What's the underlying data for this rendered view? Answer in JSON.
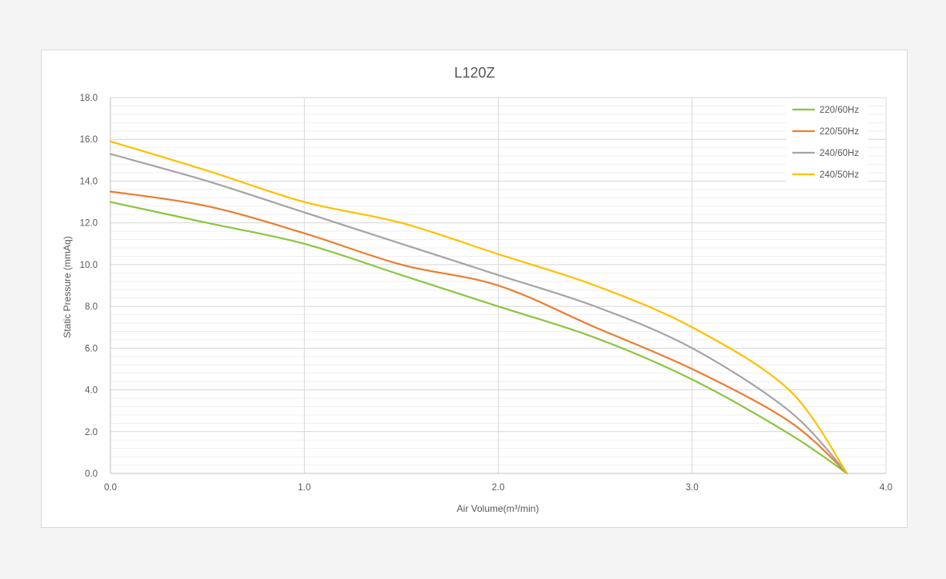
{
  "chart_data": {
    "type": "line",
    "title": "L120Z",
    "xlabel": "Air Volume(m³/min)",
    "ylabel": "Static Pressure (mmAq)",
    "xlim": [
      0,
      4
    ],
    "ylim": [
      0,
      18
    ],
    "x_ticks": [
      "0.0",
      "1.0",
      "2.0",
      "3.0",
      "4.0"
    ],
    "y_ticks": [
      "0.0",
      "2.0",
      "4.0",
      "6.0",
      "8.0",
      "10.0",
      "12.0",
      "14.0",
      "16.0",
      "18.0"
    ],
    "grid": true,
    "legend_position": "top-right",
    "series": [
      {
        "name": "220/60Hz",
        "color": "#8dc63f",
        "points": [
          [
            0,
            13.0
          ],
          [
            0.5,
            12.0
          ],
          [
            1.0,
            11.0
          ],
          [
            1.5,
            9.5
          ],
          [
            2.0,
            8.0
          ],
          [
            2.5,
            6.5
          ],
          [
            3.0,
            4.5
          ],
          [
            3.5,
            1.9
          ],
          [
            3.8,
            0
          ]
        ]
      },
      {
        "name": "220/50Hz",
        "color": "#ed7d31",
        "points": [
          [
            0,
            13.5
          ],
          [
            0.5,
            12.8
          ],
          [
            1.0,
            11.5
          ],
          [
            1.5,
            10.0
          ],
          [
            2.0,
            9.0
          ],
          [
            2.5,
            7.0
          ],
          [
            3.0,
            5.0
          ],
          [
            3.5,
            2.5
          ],
          [
            3.8,
            0
          ]
        ]
      },
      {
        "name": "240/60Hz",
        "color": "#a5a5a5",
        "points": [
          [
            0,
            15.3
          ],
          [
            0.5,
            14.0
          ],
          [
            1.0,
            12.5
          ],
          [
            1.5,
            11.0
          ],
          [
            2.0,
            9.5
          ],
          [
            2.5,
            8.0
          ],
          [
            3.0,
            6.0
          ],
          [
            3.5,
            3.0
          ],
          [
            3.8,
            0
          ]
        ]
      },
      {
        "name": "240/50Hz",
        "color": "#ffc000",
        "points": [
          [
            0,
            15.9
          ],
          [
            0.5,
            14.5
          ],
          [
            1.0,
            13.0
          ],
          [
            1.5,
            12.0
          ],
          [
            2.0,
            10.5
          ],
          [
            2.5,
            9.0
          ],
          [
            3.0,
            7.0
          ],
          [
            3.5,
            4.0
          ],
          [
            3.8,
            0
          ]
        ]
      }
    ]
  }
}
